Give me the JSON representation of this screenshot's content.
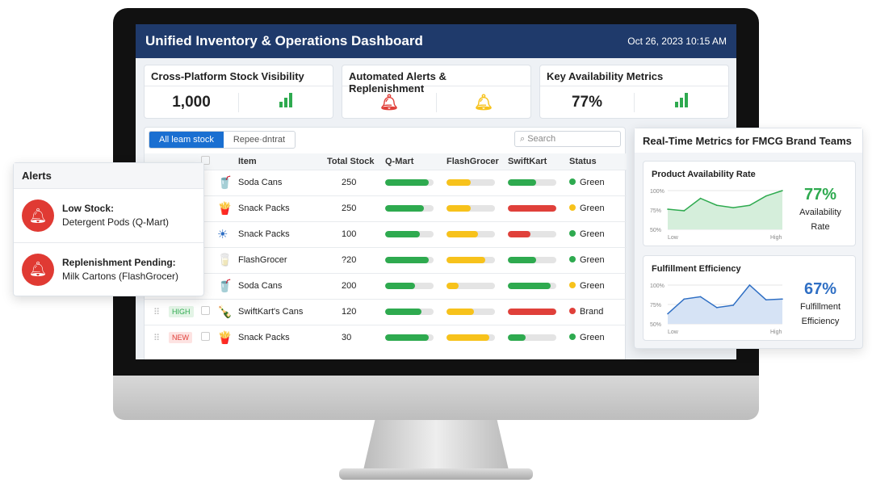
{
  "header": {
    "title": "Unified Inventory & Operations Dashboard",
    "datetime": "Oct 26, 2023 10:15 AM"
  },
  "cards": [
    {
      "title": "Cross-Platform Stock Visibility",
      "value": "1,000",
      "icon": "bar-chart-icon"
    },
    {
      "title": "Automated Alerts & Replenishment",
      "icons": [
        "bell-icon-red",
        "bell-icon-yellow"
      ]
    },
    {
      "title": "Key Availability Metrics",
      "value": "77%",
      "icon": "bar-chart-icon"
    }
  ],
  "table": {
    "tabs": [
      "All leam stock",
      "Repee·dntrat"
    ],
    "search_placeholder": "Search",
    "columns": [
      "Item",
      "Total Stock",
      "Q-Mart",
      "FlashGrocer",
      "SwiftKart",
      "Status"
    ],
    "rows": [
      {
        "tag": "",
        "item": "Soda Cans",
        "icon": "soda-can",
        "stock": "250",
        "q": 0.9,
        "f": 0.5,
        "s": 0.58,
        "qc": "#2eaa4f",
        "fc": "#f7c21b",
        "sc": "#2eaa4f",
        "status": "Green",
        "dot": "#2eaa4f"
      },
      {
        "tag": "",
        "item": "Snack Packs",
        "icon": "snack-bag",
        "stock": "250",
        "q": 0.8,
        "f": 0.5,
        "s": 1,
        "qc": "#2eaa4f",
        "fc": "#f7c21b",
        "sc": "#e0403a",
        "status": "Green",
        "dot": "#f7c21b"
      },
      {
        "tag": "",
        "item": "Snack Packs",
        "icon": "snack-box",
        "stock": "100",
        "q": 0.72,
        "f": 0.65,
        "s": 0.47,
        "qc": "#2eaa4f",
        "fc": "#f7c21b",
        "sc": "#e0403a",
        "status": "Green",
        "dot": "#2eaa4f"
      },
      {
        "tag": "",
        "item": "FlashGrocer",
        "icon": "milk-carton",
        "stock": "?20",
        "q": 0.9,
        "f": 0.8,
        "s": 0.58,
        "qc": "#2eaa4f",
        "fc": "#f7c21b",
        "sc": "#2eaa4f",
        "status": "Green",
        "dot": "#2eaa4f"
      },
      {
        "tag": "",
        "item": "Soda Cans",
        "icon": "soda-can",
        "stock": "200",
        "q": 0.62,
        "f": 0.25,
        "s": 0.88,
        "qc": "#2eaa4f",
        "fc": "#f7c21b",
        "sc": "#2eaa4f",
        "status": "Green",
        "dot": "#f7c21b"
      },
      {
        "tag": "HIGH",
        "item": "SwiftKart's Cans",
        "icon": "bottle",
        "stock": "120",
        "q": 0.75,
        "f": 0.56,
        "s": 1,
        "qc": "#2eaa4f",
        "fc": "#f7c21b",
        "sc": "#e0403a",
        "status": "Brand",
        "dot": "#e0403a"
      },
      {
        "tag": "NEW",
        "item": "Snack Packs",
        "icon": "snack-bag",
        "stock": "30",
        "q": 0.9,
        "f": 0.88,
        "s": 0.37,
        "qc": "#2eaa4f",
        "fc": "#f7c21b",
        "sc": "#2eaa4f",
        "status": "Green",
        "dot": "#2eaa4f"
      }
    ]
  },
  "alerts": {
    "title": "Alerts",
    "items": [
      {
        "title": "Low Stock:",
        "detail": "Detergent Pods (Q-Mart)"
      },
      {
        "title": "Replenishment Pending:",
        "detail": "Milk Cartons (FlashGrocer)"
      }
    ]
  },
  "metrics": {
    "title": "Real-Time Metrics for FMCG Brand Teams",
    "charts": [
      {
        "title": "Product Availability Rate",
        "value": "77%",
        "label": "Availability Rate",
        "color": "#2eaa4f",
        "fill": "#d5eedb",
        "yticks": [
          "100%",
          "75%",
          "50%"
        ],
        "xticks": [
          "Low",
          "High"
        ],
        "values": [
          76,
          74,
          90,
          81,
          78,
          81,
          93,
          100
        ]
      },
      {
        "title": "Fulfillment Efficiency",
        "value": "67%",
        "label": "Fulfillment Efficiency",
        "color": "#2f6fc4",
        "fill": "#d6e3f5",
        "yticks": [
          "100%",
          "75%",
          "50%"
        ],
        "xticks": [
          "Low",
          "High"
        ],
        "values": [
          63,
          82,
          85,
          71,
          74,
          100,
          81,
          82
        ]
      }
    ]
  }
}
